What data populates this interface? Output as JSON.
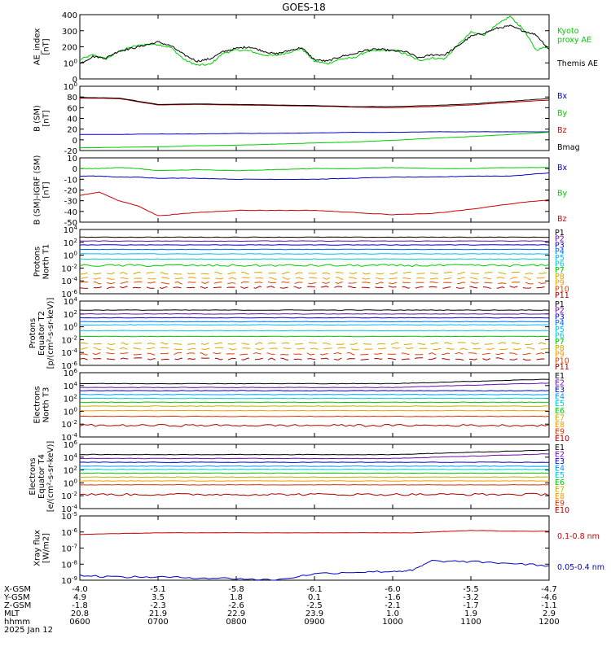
{
  "title": "GOES-18",
  "chart_data": [
    {
      "type": "line",
      "id": "ae",
      "ylabel": [
        "AE_index",
        "[nT]"
      ],
      "y_ticks": [
        "0",
        "100",
        "200",
        "300",
        "400"
      ],
      "ylim": [
        0,
        400
      ],
      "scale": "linear",
      "x": [
        "0600",
        "0610",
        "0620",
        "0630",
        "0640",
        "0650",
        "0700",
        "0710",
        "0720",
        "0730",
        "0740",
        "0750",
        "0800",
        "0810",
        "0820",
        "0830",
        "0840",
        "0850",
        "0900",
        "0910",
        "0920",
        "0930",
        "0940",
        "0950",
        "1000",
        "1010",
        "1020",
        "1030",
        "1040",
        "1050",
        "1100",
        "1110",
        "1120",
        "1130",
        "1140",
        "1150",
        "1200"
      ],
      "series": [
        {
          "name": "Kyoto proxy AE",
          "color": "#00cc00",
          "label_lines": [
            "Kyoto",
            "proxy AE"
          ],
          "values": [
            120,
            150,
            125,
            170,
            200,
            215,
            215,
            195,
            120,
            85,
            90,
            160,
            180,
            175,
            150,
            145,
            165,
            190,
            110,
            95,
            125,
            130,
            170,
            175,
            180,
            155,
            115,
            130,
            125,
            210,
            290,
            275,
            335,
            390,
            310,
            180,
            205
          ]
        },
        {
          "name": "Themis AE",
          "color": "#000000",
          "label_lines": [
            "Themis AE"
          ],
          "values": [
            95,
            140,
            130,
            175,
            190,
            210,
            230,
            205,
            150,
            110,
            125,
            170,
            190,
            200,
            175,
            155,
            175,
            195,
            120,
            110,
            140,
            155,
            180,
            185,
            175,
            170,
            130,
            150,
            150,
            205,
            265,
            285,
            315,
            330,
            300,
            275,
            185
          ]
        }
      ]
    },
    {
      "type": "line",
      "id": "bsm",
      "ylabel": [
        "B (SM)",
        "[nT]"
      ],
      "y_ticks": [
        "-20",
        "0",
        "20",
        "40",
        "60",
        "80",
        "100"
      ],
      "ylim": [
        -20,
        100
      ],
      "scale": "linear",
      "x": [
        "0600",
        "0630",
        "0700",
        "0730",
        "0800",
        "0830",
        "0900",
        "0930",
        "1000",
        "1030",
        "1100",
        "1130",
        "1200"
      ],
      "series": [
        {
          "name": "Bx",
          "color": "#0000cc",
          "values": [
            10,
            10,
            11,
            11,
            12,
            12,
            13,
            14,
            14,
            15,
            15,
            15,
            15
          ]
        },
        {
          "name": "By",
          "color": "#00cc00",
          "values": [
            -15,
            -14,
            -13,
            -11,
            -10,
            -8,
            -6,
            -4,
            -1,
            3,
            6,
            10,
            14
          ]
        },
        {
          "name": "Bz",
          "color": "#cc0000",
          "values": [
            78,
            77,
            65,
            66,
            65,
            64,
            63,
            61,
            60,
            62,
            65,
            70,
            74
          ]
        },
        {
          "name": "Bmag",
          "color": "#000000",
          "values": [
            79,
            78,
            66,
            67,
            66,
            65,
            64,
            62,
            62,
            64,
            67,
            72,
            77
          ]
        }
      ]
    },
    {
      "type": "line",
      "id": "bigrf",
      "ylabel": [
        "B (SM)-IGRF (SM)",
        "[nT]"
      ],
      "y_ticks": [
        "-50",
        "-40",
        "-30",
        "-20",
        "-10",
        "0",
        "10"
      ],
      "ylim": [
        -50,
        10
      ],
      "scale": "linear",
      "x": [
        "0600",
        "0615",
        "0630",
        "0645",
        "0700",
        "0730",
        "0800",
        "0830",
        "0900",
        "0930",
        "1000",
        "1030",
        "1100",
        "1130",
        "1200"
      ],
      "series": [
        {
          "name": "Bx",
          "color": "#0000cc",
          "values": [
            -7,
            -7,
            -8,
            -8,
            -9,
            -9,
            -10,
            -10,
            -10,
            -9,
            -8,
            -8,
            -7,
            -7,
            -4
          ]
        },
        {
          "name": "By",
          "color": "#00cc00",
          "values": [
            0,
            0,
            1,
            0,
            -2,
            -1,
            -2,
            -1,
            0,
            0,
            1,
            0,
            0,
            1,
            1
          ]
        },
        {
          "name": "Bz",
          "color": "#cc0000",
          "values": [
            -25,
            -22,
            -30,
            -35,
            -44,
            -41,
            -39,
            -39,
            -39,
            -41,
            -43,
            -42,
            -38,
            -33,
            -29
          ]
        }
      ]
    },
    {
      "type": "line",
      "id": "p_t1",
      "ylabel": [
        "Protons",
        "North T1"
      ],
      "y_ticks": [
        "10-6",
        "10-4",
        "10-2",
        "100",
        "102",
        "104"
      ],
      "ylim": [
        -6,
        4
      ],
      "scale": "log",
      "series": [
        {
          "name": "P1",
          "color": "#000000",
          "value": 2.8
        },
        {
          "name": "P2",
          "color": "#6a0dad",
          "value": 2.2
        },
        {
          "name": "P3",
          "color": "#0000cc",
          "value": 1.6
        },
        {
          "name": "P4",
          "color": "#0066ff",
          "value": 0.9
        },
        {
          "name": "P5",
          "color": "#00bbff",
          "value": 0.2
        },
        {
          "name": "P6",
          "color": "#00cccc",
          "value": -0.6
        },
        {
          "name": "P7",
          "color": "#00cc00",
          "value": -1.6
        },
        {
          "name": "P8",
          "color": "#ccaa00",
          "value": -2.8
        },
        {
          "name": "P9",
          "color": "#ff9900",
          "value": -3.6
        },
        {
          "name": "P10",
          "color": "#dd4400",
          "value": -4.3
        },
        {
          "name": "P11",
          "color": "#aa0000",
          "value": -5.0
        }
      ]
    },
    {
      "type": "line",
      "id": "p_t2",
      "ylabel": [
        "Protons",
        "Equator T2",
        "[p/(cm²-s-sr-keV)]"
      ],
      "y_ticks": [
        "10-6",
        "10-4",
        "10-2",
        "100",
        "102",
        "104"
      ],
      "ylim": [
        -6,
        4
      ],
      "scale": "log",
      "series": [
        {
          "name": "P1",
          "color": "#000000",
          "value": 2.6
        },
        {
          "name": "P2",
          "color": "#6a0dad",
          "value": 2.0
        },
        {
          "name": "P3",
          "color": "#0000cc",
          "value": 1.4
        },
        {
          "name": "P4",
          "color": "#0066ff",
          "value": 0.8
        },
        {
          "name": "P5",
          "color": "#00bbff",
          "value": 0.3
        },
        {
          "name": "P6",
          "color": "#00cccc",
          "value": -0.6
        },
        {
          "name": "P7",
          "color": "#00cc00",
          "value": -1.5
        },
        {
          "name": "P8",
          "color": "#ccaa00",
          "value": -2.6
        },
        {
          "name": "P9",
          "color": "#ff9900",
          "value": -3.4
        },
        {
          "name": "P10",
          "color": "#dd4400",
          "value": -4.2
        },
        {
          "name": "P11",
          "color": "#aa0000",
          "value": -5.0
        }
      ]
    },
    {
      "type": "line",
      "id": "e_t3",
      "ylabel": [
        "Electrons",
        "North T3"
      ],
      "y_ticks": [
        "10-4",
        "10-2",
        "100",
        "102",
        "104",
        "106"
      ],
      "ylim": [
        -4,
        6
      ],
      "scale": "log",
      "series": [
        {
          "name": "E1",
          "color": "#000000",
          "value": 4.3
        },
        {
          "name": "E2",
          "color": "#6a0dad",
          "value": 3.7
        },
        {
          "name": "E3",
          "color": "#0000cc",
          "value": 3.2
        },
        {
          "name": "E4",
          "color": "#0099ff",
          "value": 2.6
        },
        {
          "name": "E5",
          "color": "#00cccc",
          "value": 2.0
        },
        {
          "name": "E6",
          "color": "#00cc00",
          "value": 1.4
        },
        {
          "name": "E7",
          "color": "#ccaa00",
          "value": 0.8
        },
        {
          "name": "E8",
          "color": "#ff9900",
          "value": 0.1
        },
        {
          "name": "E9",
          "color": "#dd3300",
          "value": -0.8
        },
        {
          "name": "E10",
          "color": "#aa0000",
          "value": -2.2
        }
      ]
    },
    {
      "type": "line",
      "id": "e_t4",
      "ylabel": [
        "Electrons",
        "Equator T4",
        "[e/(cm²-s-sr-keV)]"
      ],
      "y_ticks": [
        "10-4",
        "10-2",
        "100",
        "102",
        "104",
        "106"
      ],
      "ylim": [
        -4,
        6
      ],
      "scale": "log",
      "series": [
        {
          "name": "E1",
          "color": "#000000",
          "value": 4.4
        },
        {
          "name": "E2",
          "color": "#6a0dad",
          "value": 3.8
        },
        {
          "name": "E3",
          "color": "#0000cc",
          "value": 3.2
        },
        {
          "name": "E4",
          "color": "#0099ff",
          "value": 2.6
        },
        {
          "name": "E5",
          "color": "#00cccc",
          "value": 2.1
        },
        {
          "name": "E6",
          "color": "#00cc00",
          "value": 1.5
        },
        {
          "name": "E7",
          "color": "#ccaa00",
          "value": 0.9
        },
        {
          "name": "E8",
          "color": "#ff9900",
          "value": 0.3
        },
        {
          "name": "E9",
          "color": "#dd3300",
          "value": -0.3
        },
        {
          "name": "E10",
          "color": "#aa0000",
          "value": -1.8
        }
      ]
    },
    {
      "type": "line",
      "id": "xray",
      "ylabel": [
        "Xray flux",
        "[W/m2]"
      ],
      "y_ticks": [
        "10-9",
        "10-8",
        "10-7",
        "10-6",
        "10-5"
      ],
      "ylim": [
        -9,
        -5
      ],
      "scale": "log",
      "x": [
        "0600",
        "0630",
        "0700",
        "0730",
        "0800",
        "0830",
        "0900",
        "0930",
        "1000",
        "1015",
        "1030",
        "1100",
        "1130",
        "1200"
      ],
      "series": [
        {
          "name": "0.1-0.8 nm",
          "color": "#cc0000",
          "values": [
            -6.15,
            -6.1,
            -6.05,
            -6.05,
            -6.05,
            -6.05,
            -6.05,
            -6.05,
            -6.05,
            -6.05,
            -6.0,
            -5.9,
            -5.95,
            -5.95
          ]
        },
        {
          "name": "0.05-0.4 nm",
          "color": "#0000cc",
          "values": [
            -8.7,
            -8.8,
            -8.8,
            -8.85,
            -8.9,
            -9.0,
            -8.6,
            -8.5,
            -8.45,
            -8.4,
            -7.8,
            -7.85,
            -7.95,
            -8.1
          ]
        }
      ]
    }
  ],
  "x_axis": {
    "ticks": [
      "0600",
      "0700",
      "0800",
      "0900",
      "1000",
      "1100",
      "1200"
    ],
    "row_labels": [
      "X-GSM",
      "Y-GSM",
      "Z-GSM",
      "MLT",
      "hhmm"
    ],
    "date": "2025 Jan 12",
    "rows": [
      [
        "-4.0",
        "-5.1",
        "-5.8",
        "-6.1",
        "-6.0",
        "-5.5",
        "-4.7"
      ],
      [
        "4.9",
        "3.5",
        "1.8",
        "0.1",
        "-1.6",
        "-3.2",
        "-4.6"
      ],
      [
        "-1.8",
        "-2.3",
        "-2.6",
        "-2.5",
        "-2.1",
        "-1.7",
        "-1.1"
      ],
      [
        "20.8",
        "21.9",
        "22.9",
        "23.9",
        "1.0",
        "1.9",
        "2.9"
      ],
      [
        "0600",
        "0700",
        "0800",
        "0900",
        "1000",
        "1100",
        "1200"
      ]
    ]
  }
}
